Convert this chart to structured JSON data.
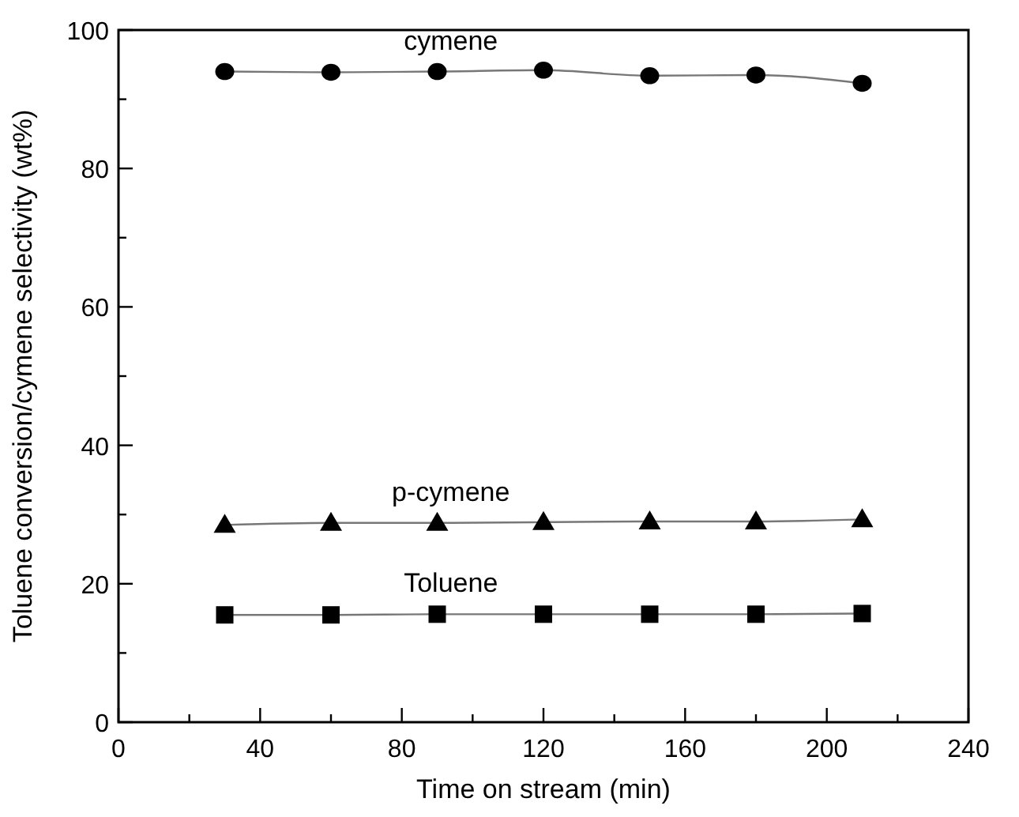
{
  "chart_data": {
    "type": "line",
    "xlabel": "Time on stream (min)",
    "ylabel": "Toluene conversion/cymene selectivity (wt%)",
    "x": [
      30,
      60,
      90,
      120,
      150,
      180,
      210
    ],
    "xlim": [
      0,
      240
    ],
    "xticks": [
      0,
      {
        "value": 20,
        "label": null
      },
      40,
      {
        "value": 60,
        "label": null
      },
      80,
      {
        "value": 100,
        "label": null
      },
      120,
      {
        "value": 140,
        "label": null
      },
      160,
      {
        "value": 180,
        "label": null
      },
      200,
      {
        "value": 220,
        "label": null
      },
      240
    ],
    "ylim": [
      0,
      100
    ],
    "yticks": [
      0,
      {
        "value": 10,
        "label": null
      },
      20,
      {
        "value": 30,
        "label": null
      },
      40,
      {
        "value": 50,
        "label": null
      },
      60,
      {
        "value": 70,
        "label": null
      },
      80,
      {
        "value": 90,
        "label": null
      },
      100
    ],
    "grid": false,
    "line_style": "solid",
    "series": [
      {
        "name": "cymene",
        "color": "#000000",
        "marker": "circle",
        "values": [
          94.0,
          93.9,
          94.0,
          94.2,
          93.4,
          93.5,
          92.3
        ]
      },
      {
        "name": "p-cymene",
        "color": "#000000",
        "marker": "triangle",
        "values": [
          28.5,
          28.8,
          28.8,
          28.9,
          29.0,
          29.0,
          29.3
        ]
      },
      {
        "name": "Toluene",
        "color": "#000000",
        "marker": "square",
        "values": [
          15.5,
          15.5,
          15.6,
          15.6,
          15.6,
          15.6,
          15.7
        ]
      }
    ]
  }
}
